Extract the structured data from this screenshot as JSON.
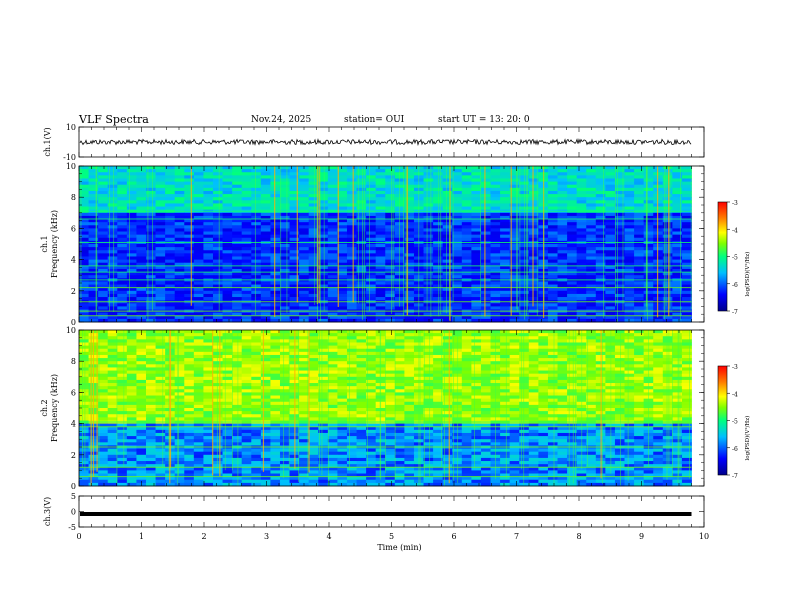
{
  "header": {
    "title": "VLF Spectra",
    "date": "Nov.24, 2025",
    "station": "station= OUI",
    "start": "start  UT  =   13: 20: 0"
  },
  "chart_data": [
    {
      "type": "line",
      "panel": "ch1-waveform",
      "ylabel": "ch.1(V)",
      "ylim": [
        -10,
        10
      ],
      "yticks": [
        "10",
        "-10"
      ],
      "xlim": [
        0,
        9.8
      ],
      "series": [
        {
          "values_summary": "noisy trace centred near 0 V"
        }
      ]
    },
    {
      "type": "heatmap",
      "panel": "ch1-spectrogram",
      "ylabel": "ch.1\nFrequency  (kHz)",
      "ylim": [
        0,
        10
      ],
      "yticks": [
        "0",
        "2",
        "4",
        "6",
        "8",
        "10"
      ],
      "xlim": [
        0,
        9.8
      ],
      "colorbar": {
        "label": "log(PSD)(V²/Hz)",
        "range": [
          -7,
          -3
        ],
        "ticks": [
          "-3",
          "-4",
          "-5",
          "-6",
          "-7"
        ]
      },
      "features": {
        "strong_lines_khz": [
          0.4,
          0.7,
          1.3,
          2.2
        ],
        "background_log_psd": -6.3,
        "upper_band_khz": [
          7,
          10
        ],
        "upper_band_log_psd": -5.6
      }
    },
    {
      "type": "heatmap",
      "panel": "ch2-spectrogram",
      "ylabel": "ch.2\nFrequency  (kHz)",
      "ylim": [
        0,
        10
      ],
      "yticks": [
        "0",
        "2",
        "4",
        "6",
        "8",
        "10"
      ],
      "xlim": [
        0,
        9.8
      ],
      "colorbar": {
        "label": "log(PSD)(V²/Hz)",
        "range": [
          -7,
          -3
        ],
        "ticks": [
          "-3",
          "-4",
          "-5",
          "-6",
          "-7"
        ]
      },
      "features": {
        "upper_band_khz": [
          4,
          10
        ],
        "upper_band_log_psd": -4.6,
        "lower_band_log_psd": -6.0
      }
    },
    {
      "type": "line",
      "panel": "ch3-waveform",
      "ylabel": "ch.3(V)",
      "ylim": [
        -5,
        5
      ],
      "yticks": [
        "5",
        "0",
        "-5"
      ],
      "xlim": [
        0,
        9.8
      ],
      "series": [
        {
          "values_summary": "flat line near -0.8 V"
        }
      ]
    }
  ],
  "xaxis": {
    "label": "Time  (min)",
    "range": [
      0,
      10
    ],
    "ticks": [
      "0",
      "1",
      "2",
      "3",
      "4",
      "5",
      "6",
      "7",
      "8",
      "9",
      "10"
    ]
  },
  "colors": {
    "scale": [
      "#00008b",
      "#0000ff",
      "#00bfff",
      "#00ff7f",
      "#7fff00",
      "#ffff00",
      "#ff7f00",
      "#ff0000"
    ]
  }
}
